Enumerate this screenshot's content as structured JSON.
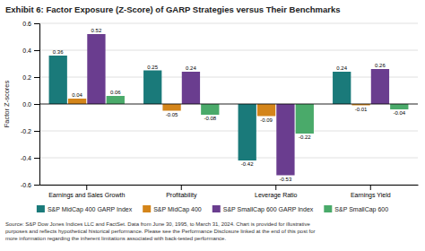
{
  "chart_data": {
    "type": "bar",
    "title": "Exhibit 6: Factor Exposure (Z-Score) of GARP Strategies versus Their Benchmarks",
    "categories": [
      "Earnings and Sales Growth",
      "Profitability",
      "Leverage Ratio",
      "Earnings Yield"
    ],
    "series": [
      {
        "name": "S&P MidCap 400 GARP Index",
        "color": "#1a7a7a",
        "values": [
          0.36,
          0.25,
          -0.42,
          0.24
        ]
      },
      {
        "name": "S&P MidCap 400",
        "color": "#d4851a",
        "values": [
          0.04,
          -0.05,
          -0.09,
          -0.01
        ]
      },
      {
        "name": "S&P SmallCap 600 GARP Index",
        "color": "#6a3d8f",
        "values": [
          0.52,
          0.24,
          -0.53,
          0.26
        ]
      },
      {
        "name": "S&P SmallCap 600",
        "color": "#4aaa6a",
        "values": [
          0.06,
          -0.08,
          -0.22,
          -0.04
        ]
      }
    ],
    "ylabel": "Factor Z-scores",
    "ylim": [
      -0.6,
      0.6
    ],
    "yticks": [
      -0.6,
      -0.4,
      -0.2,
      {
        "value": 0.0,
        "label": "0.0"
      },
      0.2,
      0.4,
      0.6
    ],
    "grid": true,
    "data_labels": true,
    "legend": "bottom",
    "annotations": [
      "Source: S&P Dow Jones Indices LLC and FactSet. Data from June 30, 1995, to March 31, 2024. Chart is provided for illustrative",
      "purposes and reflects hypothetical historical performance. Please see the Performance Disclosure linked at the end of this post for",
      "more information regarding the inherent limitations associated with back-tested performance."
    ]
  }
}
